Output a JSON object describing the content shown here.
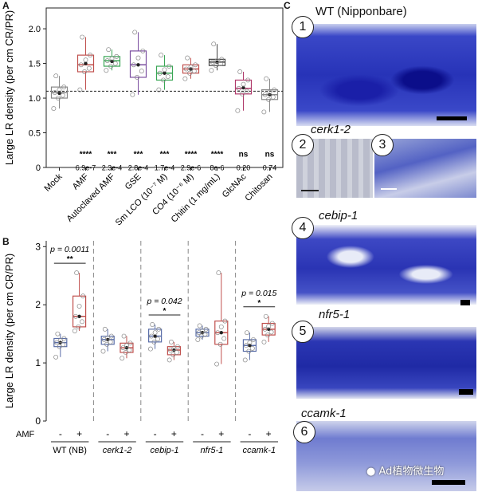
{
  "panels": {
    "A": {
      "letter": "A",
      "chart_data": {
        "type": "box",
        "ylabel": "Large LR density (per cm CR/PR)",
        "ylim": [
          0,
          2.3
        ],
        "yticks": [
          "0",
          "0.5",
          "1.0",
          "1.5",
          "2.0"
        ],
        "reference_line": 1.1,
        "categories": [
          "Mock",
          "AMF",
          "Autoclaved AMF",
          "GSE",
          "Sm LCO (10⁻⁷ M)",
          "CO4 (10⁻⁶ M)",
          "Chitin (1 mg/mL)",
          "GlcNAc",
          "Chitosan"
        ],
        "colors": [
          "#888888",
          "#c0504d",
          "#3aa655",
          "#7b4fa0",
          "#3aa655",
          "#c0504d",
          "#444444",
          "#b03a6b",
          "#888888"
        ],
        "boxes": [
          {
            "q1": 1.0,
            "median": 1.08,
            "q3": 1.16,
            "lo": 0.85,
            "hi": 1.32,
            "mean": 1.07
          },
          {
            "q1": 1.38,
            "median": 1.48,
            "q3": 1.62,
            "lo": 1.12,
            "hi": 1.88,
            "mean": 1.5
          },
          {
            "q1": 1.46,
            "median": 1.54,
            "q3": 1.6,
            "lo": 1.4,
            "hi": 1.7,
            "mean": 1.53
          },
          {
            "q1": 1.3,
            "median": 1.48,
            "q3": 1.68,
            "lo": 1.05,
            "hi": 1.95,
            "mean": 1.48
          },
          {
            "q1": 1.26,
            "median": 1.36,
            "q3": 1.46,
            "lo": 1.12,
            "hi": 1.62,
            "mean": 1.36
          },
          {
            "q1": 1.36,
            "median": 1.42,
            "q3": 1.48,
            "lo": 1.28,
            "hi": 1.58,
            "mean": 1.42
          },
          {
            "q1": 1.47,
            "median": 1.52,
            "q3": 1.56,
            "lo": 1.4,
            "hi": 1.78,
            "mean": 1.52
          },
          {
            "q1": 1.06,
            "median": 1.14,
            "q3": 1.26,
            "lo": 0.82,
            "hi": 1.38,
            "mean": 1.15
          },
          {
            "q1": 0.98,
            "median": 1.05,
            "q3": 1.12,
            "lo": 0.8,
            "hi": 1.28,
            "mean": 1.05
          }
        ],
        "stars": [
          "",
          "****",
          "***",
          "***",
          "***",
          "****",
          "****",
          "ns",
          "ns"
        ],
        "pvalues": [
          "",
          "6.9e-7",
          "2.3e-4",
          "2.8e-4",
          "1.7e-4",
          "2.9e-6",
          "8e-6",
          "0.20",
          "0.74"
        ]
      }
    },
    "B": {
      "letter": "B",
      "chart_data": {
        "type": "box",
        "ylabel": "Large LR density (per cm CR/PR)",
        "ylim": [
          0,
          3.1
        ],
        "yticks": [
          "0",
          "1",
          "2",
          "3"
        ],
        "amf_label": "AMF",
        "minus": "-",
        "plus": "+",
        "genotypes": [
          {
            "name": "WT (NB)",
            "italic": false,
            "minus": {
              "q1": 1.28,
              "median": 1.35,
              "q3": 1.42,
              "lo": 1.1,
              "hi": 1.5
            },
            "plus": {
              "q1": 1.62,
              "median": 1.8,
              "q3": 2.15,
              "lo": 1.55,
              "hi": 2.55
            },
            "p": "p = 0.0011",
            "stars": "**"
          },
          {
            "name": "cerk1-2",
            "italic": true,
            "minus": {
              "q1": 1.32,
              "median": 1.4,
              "q3": 1.46,
              "lo": 1.2,
              "hi": 1.58
            },
            "plus": {
              "q1": 1.18,
              "median": 1.26,
              "q3": 1.34,
              "lo": 1.08,
              "hi": 1.46
            },
            "p": "",
            "stars": ""
          },
          {
            "name": "cebip-1",
            "italic": true,
            "minus": {
              "q1": 1.36,
              "median": 1.46,
              "q3": 1.58,
              "lo": 1.24,
              "hi": 1.66
            },
            "plus": {
              "q1": 1.14,
              "median": 1.22,
              "q3": 1.28,
              "lo": 1.05,
              "hi": 1.36
            },
            "p": "p = 0.042",
            "stars": "*"
          },
          {
            "name": "nfr5-1",
            "italic": true,
            "minus": {
              "q1": 1.46,
              "median": 1.52,
              "q3": 1.58,
              "lo": 1.4,
              "hi": 1.64
            },
            "plus": {
              "q1": 1.32,
              "median": 1.52,
              "q3": 1.72,
              "lo": 0.98,
              "hi": 2.55
            },
            "p": "",
            "stars": ""
          },
          {
            "name": "ccamk-1",
            "italic": true,
            "minus": {
              "q1": 1.2,
              "median": 1.3,
              "q3": 1.4,
              "lo": 1.05,
              "hi": 1.52
            },
            "plus": {
              "q1": 1.48,
              "median": 1.58,
              "q3": 1.68,
              "lo": 1.36,
              "hi": 1.8
            },
            "p": "p = 0.015",
            "stars": "*"
          }
        ],
        "minus_color": "#5a6ea8",
        "plus_color": "#c0504d"
      }
    },
    "C": {
      "letter": "C",
      "images": [
        {
          "num": "1",
          "label": "WT (Nipponbare)",
          "italic": false
        },
        {
          "num": "2",
          "label": "cerk1-2",
          "italic": true
        },
        {
          "num": "3",
          "label": "",
          "italic": false
        },
        {
          "num": "4",
          "label": "cebip-1",
          "italic": true
        },
        {
          "num": "5",
          "label": "nfr5-1",
          "italic": true
        },
        {
          "num": "6",
          "label": "ccamk-1",
          "italic": true
        }
      ],
      "watermark": "Ad植物微生物"
    }
  }
}
